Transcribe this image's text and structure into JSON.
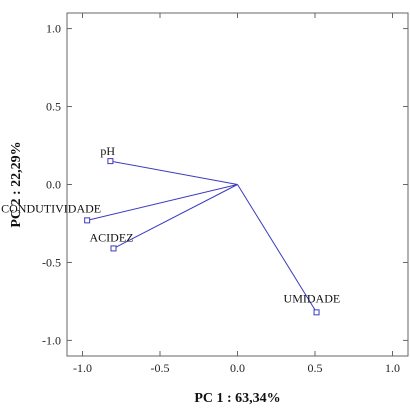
{
  "chart_data": {
    "type": "scatter",
    "subtype": "pca-loadings-biplot",
    "xlabel": "PC 1 : 63,34%",
    "ylabel": "PC 2 : 22,29%",
    "xlim": [
      -1.1,
      1.1
    ],
    "ylim": [
      -1.1,
      1.1
    ],
    "xticks": [
      "-1.0",
      "-0.5",
      "0.0",
      "0.5",
      "1.0"
    ],
    "yticks": [
      "1.0",
      "0.5",
      "0.0",
      "-0.5",
      "-1.0"
    ],
    "grid": false,
    "origin": [
      0,
      0
    ],
    "points": [
      {
        "label": "pH",
        "x": -0.82,
        "y": 0.15
      },
      {
        "label": "CONDUTIVIDADE",
        "x": -0.97,
        "y": -0.23
      },
      {
        "label": "ACIDEZ",
        "x": -0.8,
        "y": -0.41
      },
      {
        "label": "UMIDADE",
        "x": 0.51,
        "y": -0.82
      }
    ],
    "line_color": "#3b3bbf",
    "marker_color": "#3b3bbf"
  }
}
